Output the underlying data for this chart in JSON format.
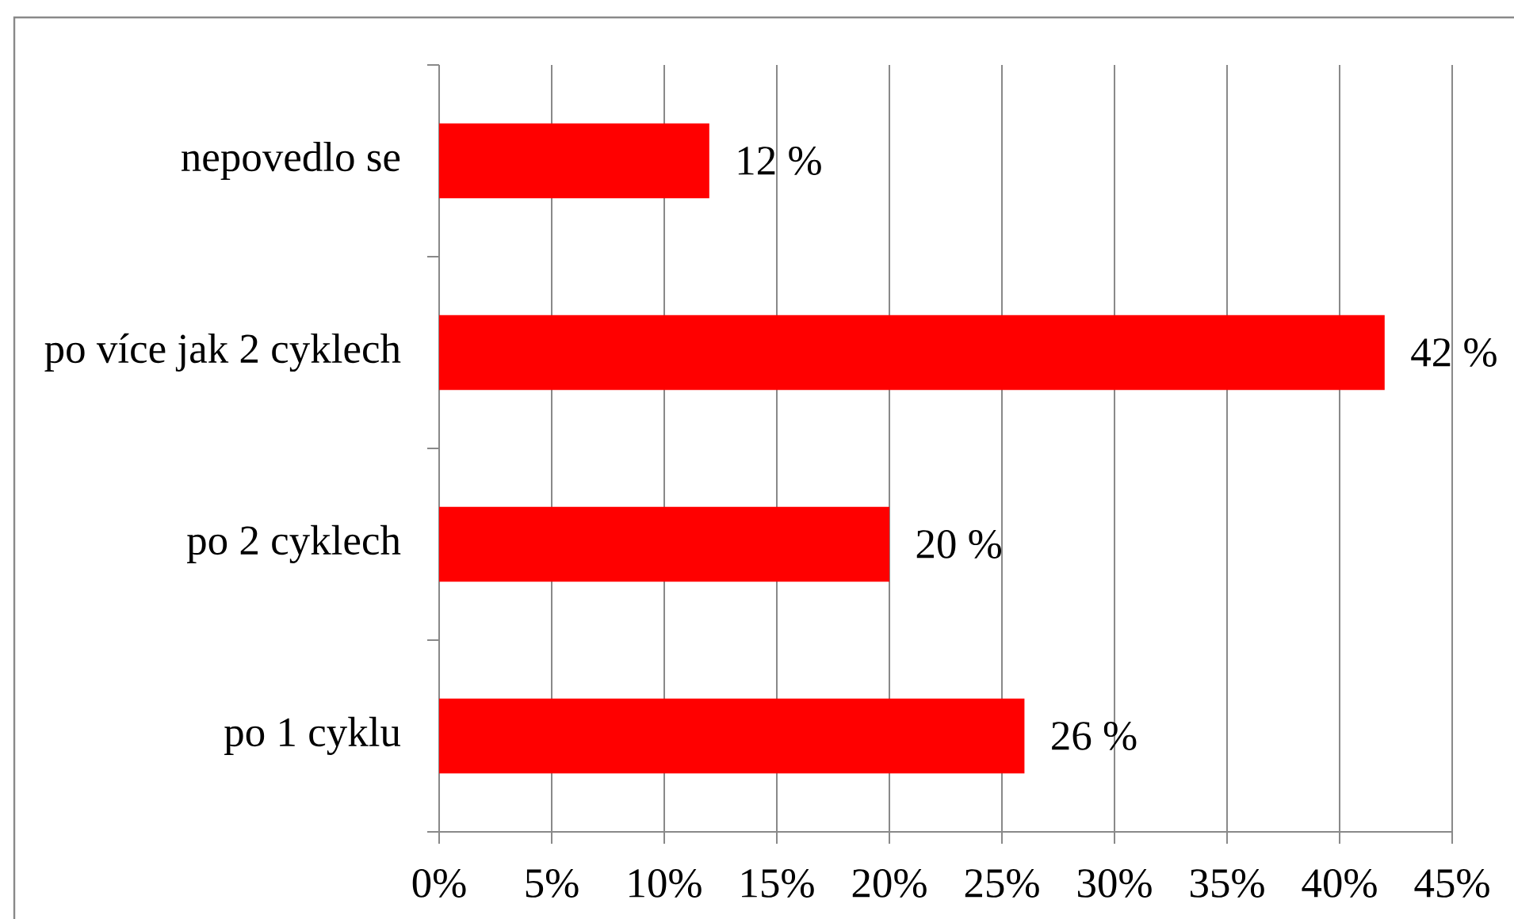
{
  "chart_data": {
    "type": "bar",
    "orientation": "horizontal",
    "categories": [
      "nepovedlo se",
      "po více jak 2 cyklech",
      "po 2 cyklech",
      "po 1 cyklu"
    ],
    "values": [
      12,
      42,
      20,
      26
    ],
    "value_labels": [
      "12 %",
      "42 %",
      "20 %",
      "26 %"
    ],
    "color": "#ff0000",
    "xlim": [
      0,
      45
    ],
    "xticks": [
      {
        "value": 0,
        "label": "0%"
      },
      {
        "value": 5,
        "label": "5%"
      },
      {
        "value": 10,
        "label": "10%"
      },
      {
        "value": 15,
        "label": "15%"
      },
      {
        "value": 20,
        "label": "20%"
      },
      {
        "value": 25,
        "label": "25%"
      },
      {
        "value": 30,
        "label": "30%"
      },
      {
        "value": 35,
        "label": "35%"
      },
      {
        "value": 40,
        "label": "40%"
      },
      {
        "value": 45,
        "label": "45%"
      }
    ],
    "grid": "x"
  }
}
